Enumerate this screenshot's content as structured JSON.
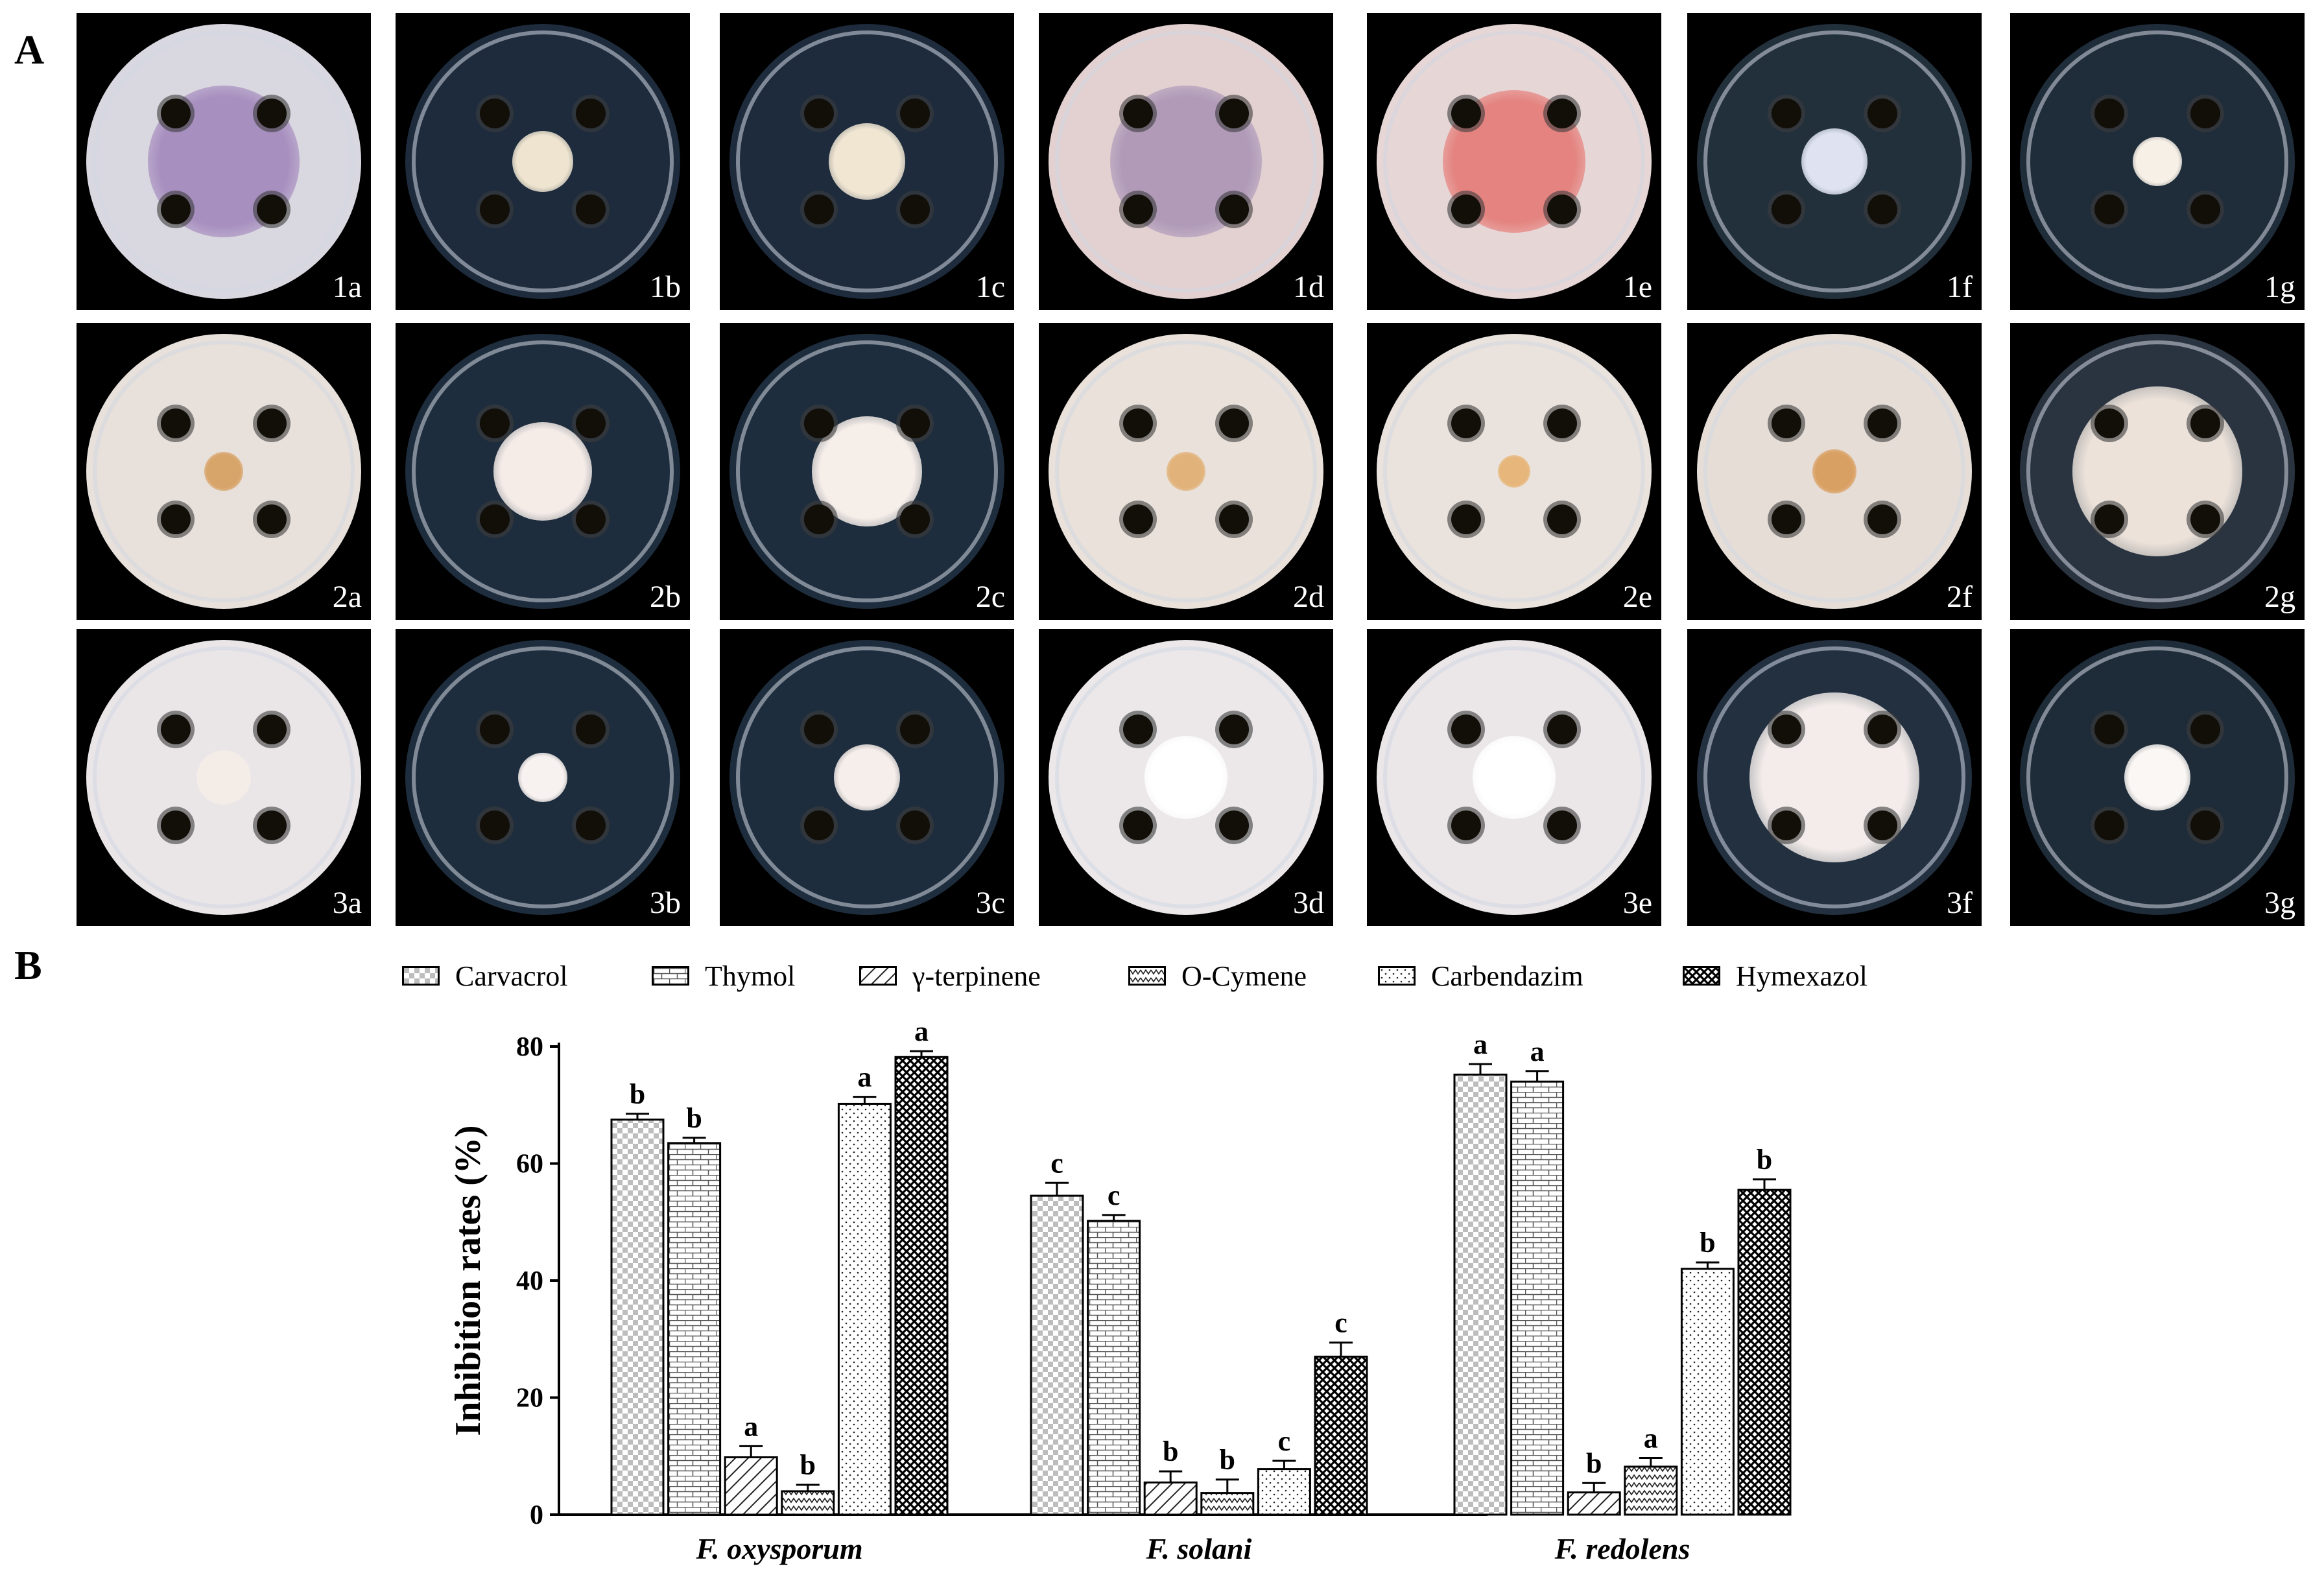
{
  "panels": {
    "a": "A",
    "b": "B"
  },
  "plates": {
    "rows": [
      [
        {
          "label": "1a",
          "dish": "#d9d7df",
          "colony": "#a78fbf",
          "colony_size": 0.55,
          "inhibited": false
        },
        {
          "label": "1b",
          "dish": "#1d2b3c",
          "colony": "#efe4cf",
          "colony_size": 0.22,
          "inhibited": true
        },
        {
          "label": "1c",
          "dish": "#1d2b3c",
          "colony": "#f1e6d2",
          "colony_size": 0.28,
          "inhibited": true
        },
        {
          "label": "1d",
          "dish": "#e3d0d0",
          "colony": "#b09ab8",
          "colony_size": 0.55,
          "inhibited": false
        },
        {
          "label": "1e",
          "dish": "#e7d6d6",
          "colony": "#e4837f",
          "colony_size": 0.52,
          "inhibited": false
        },
        {
          "label": "1f",
          "dish": "#22303c",
          "colony": "#dfe3f1",
          "colony_size": 0.24,
          "inhibited": true
        },
        {
          "label": "1g",
          "dish": "#1f2c3a",
          "colony": "#f7f0e6",
          "colony_size": 0.18,
          "inhibited": true
        }
      ],
      [
        {
          "label": "2a",
          "dish": "#e8e0da",
          "colony": "#d7a46a",
          "colony_size": 0.14,
          "inhibited": false
        },
        {
          "label": "2b",
          "dish": "#1e2d3d",
          "colony": "#f5ece8",
          "colony_size": 0.36,
          "inhibited": true
        },
        {
          "label": "2c",
          "dish": "#1e2d3d",
          "colony": "#f6eee9",
          "colony_size": 0.4,
          "inhibited": true
        },
        {
          "label": "2d",
          "dish": "#e9e1da",
          "colony": "#e1b27a",
          "colony_size": 0.14,
          "inhibited": false
        },
        {
          "label": "2e",
          "dish": "#eae2dc",
          "colony": "#e6b67a",
          "colony_size": 0.12,
          "inhibited": false
        },
        {
          "label": "2f",
          "dish": "#e6ddd7",
          "colony": "#d9a063",
          "colony_size": 0.16,
          "inhibited": false
        },
        {
          "label": "2g",
          "dish": "#2a3440",
          "colony": "#ece2da",
          "colony_size": 0.62,
          "inhibited": true
        }
      ],
      [
        {
          "label": "3a",
          "dish": "#eae6e8",
          "colony": "#f4ece6",
          "colony_size": 0.2,
          "inhibited": false
        },
        {
          "label": "3b",
          "dish": "#1e2d3d",
          "colony": "#f7f1ef",
          "colony_size": 0.18,
          "inhibited": true
        },
        {
          "label": "3c",
          "dish": "#1e2d3d",
          "colony": "#f6eeea",
          "colony_size": 0.24,
          "inhibited": true
        },
        {
          "label": "3d",
          "dish": "#ece8ea",
          "colony": "#ffffff",
          "colony_size": 0.3,
          "inhibited": false
        },
        {
          "label": "3e",
          "dish": "#ebe7e9",
          "colony": "#ffffff",
          "colony_size": 0.3,
          "inhibited": false
        },
        {
          "label": "3f",
          "dish": "#233040",
          "colony": "#f3ecea",
          "colony_size": 0.62,
          "inhibited": true
        },
        {
          "label": "3g",
          "dish": "#1e2b38",
          "colony": "#fbf7f4",
          "colony_size": 0.24,
          "inhibited": true
        }
      ]
    ]
  },
  "chart_data": {
    "type": "bar",
    "title": "",
    "xlabel": "",
    "ylabel": "Inhibition rates (%)",
    "ylim": [
      0,
      80
    ],
    "yticks": [
      0,
      20,
      40,
      60,
      80
    ],
    "categories": [
      "F. oxysporum",
      "F. solani",
      "F. redolens"
    ],
    "legend_position": "top",
    "series": [
      {
        "name": "Carvacrol",
        "pattern": "checker",
        "values": [
          67.5,
          54.5,
          75.2
        ],
        "errors": [
          1.0,
          2.2,
          1.8
        ],
        "letters": [
          "b",
          "c",
          "a"
        ]
      },
      {
        "name": "Thymol",
        "pattern": "brick",
        "values": [
          63.5,
          50.2,
          74.0
        ],
        "errors": [
          0.9,
          1.0,
          1.8
        ],
        "letters": [
          "b",
          "c",
          "a"
        ]
      },
      {
        "name": "γ-terpinene",
        "pattern": "diagonal",
        "values": [
          9.8,
          5.5,
          3.8
        ],
        "errors": [
          1.9,
          1.9,
          1.6
        ],
        "letters": [
          "a",
          "b",
          "b"
        ]
      },
      {
        "name": "O-Cymene",
        "pattern": "zigzag",
        "values": [
          4.0,
          3.7,
          8.2
        ],
        "errors": [
          1.1,
          2.3,
          1.5
        ],
        "letters": [
          "b",
          "b",
          "a"
        ]
      },
      {
        "name": "Carbendazim",
        "pattern": "dots",
        "values": [
          70.2,
          7.8,
          42.0
        ],
        "errors": [
          1.2,
          1.4,
          1.1
        ],
        "letters": [
          "a",
          "c",
          "b"
        ]
      },
      {
        "name": "Hymexazol",
        "pattern": "crosshatch",
        "values": [
          78.2,
          27.0,
          55.5
        ],
        "errors": [
          1.0,
          2.4,
          1.8
        ],
        "letters": [
          "a",
          "c",
          "b"
        ]
      }
    ]
  }
}
